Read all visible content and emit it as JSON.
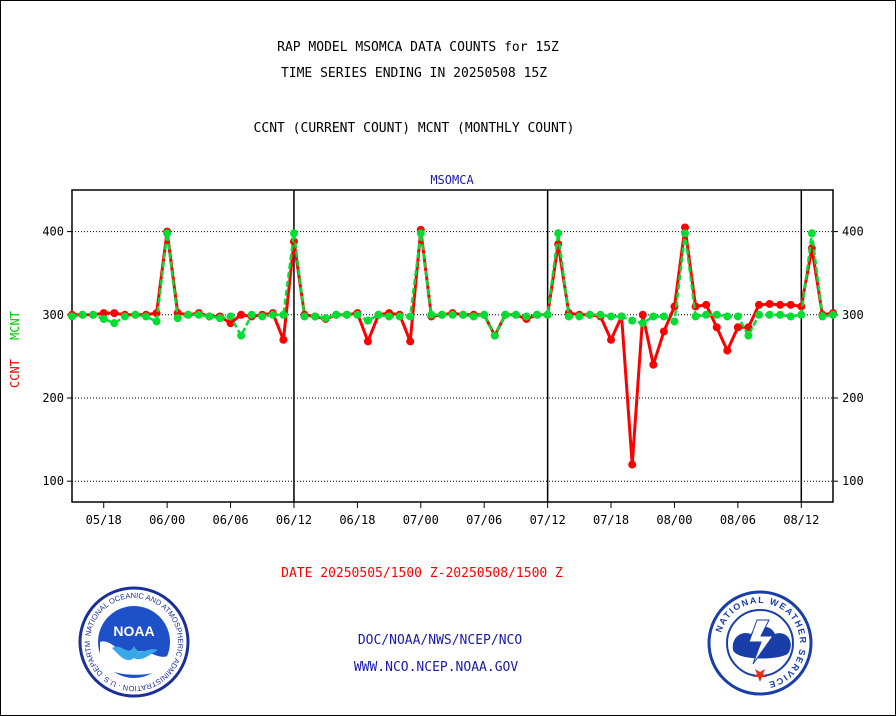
{
  "header": {
    "title_line1": "RAP MODEL MSOMCA DATA COUNTS for 15Z",
    "title_line2": "TIME SERIES ENDING IN 20250508 15Z",
    "subtitle": "CCNT (CURRENT COUNT) MCNT (MONTHLY COUNT)"
  },
  "footer": {
    "date_range": "DATE 20250505/1500 Z-20250508/1500 Z",
    "org_path": "DOC/NOAA/NWS/NCEP/NCO",
    "website": "WWW.NCO.NCEP.NOAA.GOV"
  },
  "logos": {
    "noaa_text": "NOAA",
    "noaa_ring": "NATIONAL OCEANIC AND ATMOSPHERIC ADMINISTRATION · U.S. DEPARTMENT OF COMMERCE ·",
    "nws_ring": "NATIONAL WEATHER SERVICE"
  },
  "colors": {
    "ccnt": "#ff0000",
    "mcnt": "#00dd33",
    "text_blue": "#1a1aaa"
  },
  "chart_data": {
    "type": "line",
    "title": "MSOMCA",
    "ylabel_ccnt": "CCNT",
    "ylabel_mcnt": "MCNT",
    "ylim": [
      75,
      450
    ],
    "yticks": [
      100,
      200,
      300,
      400
    ],
    "grid": "horizontal dotted at y ticks",
    "x_tick_labels": [
      "05/18",
      "06/00",
      "06/06",
      "06/12",
      "06/18",
      "07/00",
      "07/06",
      "07/12",
      "07/18",
      "08/00",
      "08/06",
      "08/12"
    ],
    "x_tick_index": [
      3,
      9,
      15,
      21,
      27,
      33,
      39,
      45,
      51,
      57,
      63,
      69
    ],
    "day_boundaries_index": [
      21,
      45,
      69
    ],
    "x_count": 73,
    "series": [
      {
        "name": "CCNT",
        "values": [
          300,
          300,
          300,
          302,
          302,
          300,
          300,
          300,
          302,
          400,
          302,
          300,
          302,
          298,
          298,
          290,
          300,
          298,
          300,
          302,
          270,
          388,
          300,
          298,
          295,
          300,
          300,
          302,
          268,
          300,
          302,
          300,
          268,
          402,
          298,
          300,
          302,
          300,
          300,
          300,
          275,
          300,
          300,
          295,
          300,
          300,
          385,
          302,
          300,
          300,
          298,
          270,
          298,
          120,
          300,
          240,
          280,
          310,
          405,
          310,
          312,
          285,
          257,
          285,
          285,
          312,
          313,
          312,
          312,
          310,
          380,
          300,
          302
        ]
      },
      {
        "name": "MCNT",
        "values": [
          298,
          300,
          300,
          295,
          290,
          298,
          300,
          298,
          292,
          398,
          296,
          300,
          300,
          298,
          296,
          298,
          275,
          300,
          298,
          300,
          300,
          398,
          298,
          298,
          296,
          300,
          300,
          300,
          293,
          300,
          298,
          298,
          298,
          398,
          300,
          300,
          300,
          300,
          298,
          300,
          275,
          300,
          300,
          298,
          300,
          300,
          398,
          298,
          298,
          300,
          300,
          298,
          298,
          293,
          290,
          298,
          298,
          292,
          398,
          298,
          300,
          300,
          298,
          298,
          275,
          300,
          300,
          300,
          298,
          300,
          398,
          298,
          300
        ]
      }
    ]
  }
}
